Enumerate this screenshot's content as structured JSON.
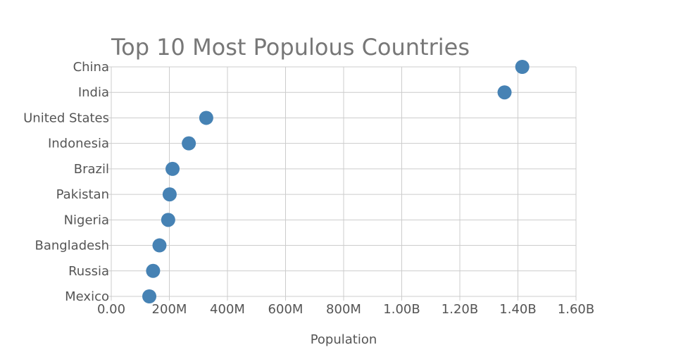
{
  "chart_data": {
    "type": "scatter",
    "title": "Top 10 Most Populous Countries",
    "xlabel": "Population",
    "ylabel": "",
    "categories": [
      "China",
      "India",
      "United States",
      "Indonesia",
      "Brazil",
      "Pakistan",
      "Nigeria",
      "Bangladesh",
      "Russia",
      "Mexico"
    ],
    "values": [
      1415000000,
      1354000000,
      327000000,
      267000000,
      211000000,
      201000000,
      196000000,
      166000000,
      144000000,
      131000000
    ],
    "xlim": [
      0,
      1600000000
    ],
    "x_ticks": [
      0,
      200000000,
      400000000,
      600000000,
      800000000,
      1000000000,
      1200000000,
      1400000000,
      1600000000
    ],
    "x_tick_labels": [
      "0.00",
      "200M",
      "400M",
      "600M",
      "800M",
      "1.00B",
      "1.20B",
      "1.40B",
      "1.60B"
    ],
    "grid": true,
    "legend": "none",
    "colors": {
      "marker": "#4682b4",
      "grid": "#cccccc",
      "text": "#555555",
      "title": "#777777"
    }
  }
}
